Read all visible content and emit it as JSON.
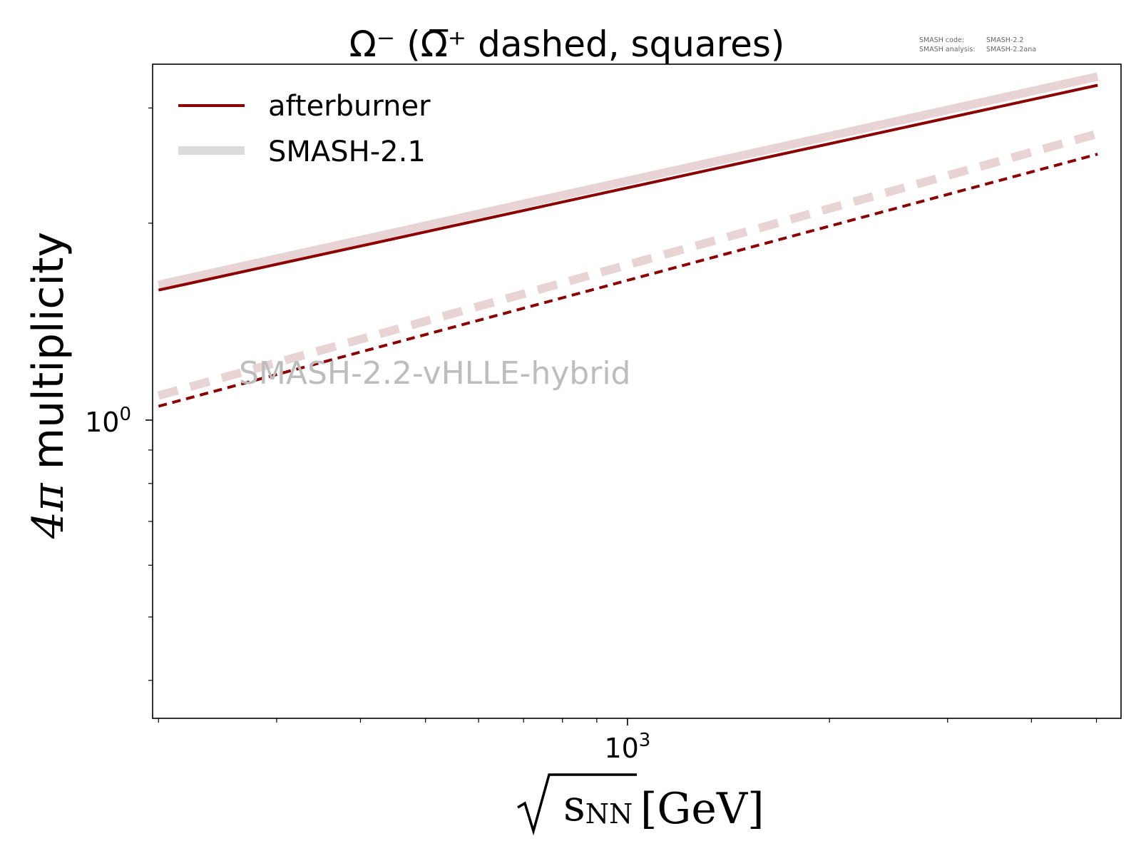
{
  "chart_data": {
    "type": "line",
    "title": "Ω⁻ (Ω̅⁺ dashed, squares)",
    "xlabel": "[GeV]",
    "xlabel_symbol": "s",
    "xlabel_subscript": "NN",
    "ylabel": " multiplicity",
    "ylabel_prefix": "4",
    "ylabel_pi": "π",
    "x_scale": "log",
    "y_scale": "log",
    "xlim": [
      196,
      5440
    ],
    "ylim": [
      0.35,
      3.5
    ],
    "x_ticks": [
      {
        "value": 1000,
        "base": "10",
        "exp": "3"
      }
    ],
    "y_ticks": [
      {
        "value": 1,
        "base": "10",
        "exp": "0"
      }
    ],
    "legend": {
      "placement": "upper-left",
      "entries": [
        {
          "label": "afterburner",
          "color": "#8b0000",
          "style": "solid-thin"
        },
        {
          "label": "SMASH-2.1",
          "color": "#dcdcdc",
          "style": "solid-thick"
        }
      ]
    },
    "annotation": "SMASH-2.2-vHLLE-hybrid",
    "version_info": {
      "code_label": "SMASH code:",
      "code_value": "SMASH-2.2",
      "analysis_label": "SMASH analysis:",
      "analysis_value": "SMASH-2.2ana"
    },
    "series": [
      {
        "name": "afterburner",
        "particle": "Ω⁻",
        "linestyle": "solid",
        "color": "#8b0000",
        "x": [
          200,
          5020
        ],
        "y": [
          1.58,
          3.25
        ]
      },
      {
        "name": "afterburner",
        "particle": "Ω̅⁺",
        "linestyle": "dashed",
        "color": "#8b0000",
        "x": [
          200,
          5020
        ],
        "y": [
          1.05,
          2.55
        ]
      },
      {
        "name": "SMASH-2.1",
        "particle": "Ω⁻",
        "linestyle": "solid",
        "color": "#e8d4d4",
        "x": [
          200,
          5020
        ],
        "y": [
          1.61,
          3.35
        ]
      },
      {
        "name": "SMASH-2.1",
        "particle": "Ω̅⁺",
        "linestyle": "dashed",
        "color": "#e8d4d4",
        "x": [
          200,
          5020
        ],
        "y": [
          1.09,
          2.74
        ]
      }
    ]
  }
}
